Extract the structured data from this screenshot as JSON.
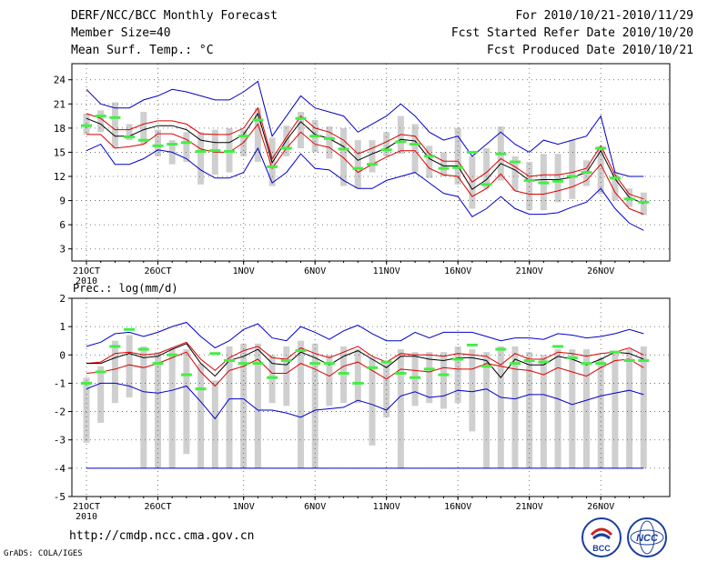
{
  "header": {
    "title": "DERF/NCC/BCC Monthly Forecast",
    "member_size": "Member Size=40",
    "variable": "Mean Surf. Temp.: °C",
    "forecast_period": "For 2010/10/21-2010/11/29",
    "started_date": "Fcst Started Refer Date 2010/10/20",
    "produced_date": "Fcst Produced Date 2010/10/21"
  },
  "footer": {
    "url": "http://cmdp.ncc.cma.gov.cn",
    "grads": "GrADS: COLA/IGES",
    "logo_left_text": "BCC",
    "logo_right_text": "NCC"
  },
  "colors": {
    "envelope": "#0000cc",
    "inner": "#dd0000",
    "mean": "#000000",
    "obs": "#44ee44",
    "box": "#cfcfcf",
    "grid": "#555555"
  },
  "chart_data": [
    {
      "type": "line",
      "title": "Mean Surf. Temp.: °C",
      "ylabel": "°C",
      "ylim": [
        1.5,
        26
      ],
      "yticks": [
        3,
        6,
        9,
        12,
        15,
        18,
        21,
        24
      ],
      "xticks": [
        {
          "day": 0,
          "label": "21OCT"
        },
        {
          "day": 5,
          "label": "26OCT"
        },
        {
          "day": 11,
          "label": "1NOV"
        },
        {
          "day": 16,
          "label": "6NOV"
        },
        {
          "day": 21,
          "label": "11NOV"
        },
        {
          "day": 26,
          "label": "16NOV"
        },
        {
          "day": 31,
          "label": "21NOV"
        },
        {
          "day": 36,
          "label": "26NOV"
        }
      ],
      "year_label": "2010",
      "series": [
        {
          "name": "ensemble max",
          "values": [
            22.8,
            21.0,
            20.5,
            20.5,
            21.5,
            22.0,
            22.8,
            22.5,
            22.0,
            21.5,
            21.5,
            22.5,
            23.8,
            17.0,
            19.5,
            22.0,
            20.5,
            20.0,
            19.5,
            17.5,
            18.5,
            19.5,
            21.0,
            19.5,
            17.5,
            16.5,
            17.0,
            14.5,
            16.0,
            17.5,
            16.0,
            15.0,
            16.5,
            16.0,
            16.5,
            17.0,
            19.5,
            12.5,
            12.0,
            12.0
          ]
        },
        {
          "name": "upper inner",
          "values": [
            19.8,
            19.2,
            17.8,
            17.8,
            18.5,
            18.9,
            18.9,
            18.5,
            17.3,
            17.2,
            17.2,
            18.0,
            20.5,
            14.2,
            16.9,
            19.5,
            18.0,
            17.5,
            16.5,
            14.8,
            15.5,
            16.3,
            17.2,
            17.0,
            14.8,
            13.9,
            13.9,
            11.3,
            12.5,
            14.2,
            13.2,
            12.0,
            12.2,
            12.2,
            12.5,
            13.0,
            15.8,
            12.2,
            9.8,
            9.2
          ]
        },
        {
          "name": "ensemble mean",
          "values": [
            19.2,
            18.5,
            17.0,
            17.0,
            17.8,
            18.3,
            18.3,
            17.8,
            16.5,
            16.2,
            16.2,
            17.2,
            19.8,
            13.7,
            16.5,
            18.8,
            17.2,
            16.7,
            15.7,
            14.0,
            14.8,
            15.5,
            16.6,
            16.4,
            14.2,
            13.3,
            13.3,
            10.4,
            11.6,
            13.6,
            12.8,
            11.5,
            11.6,
            11.6,
            11.9,
            12.5,
            15.2,
            11.7,
            9.4,
            8.6
          ]
        },
        {
          "name": "lower inner",
          "values": [
            17.2,
            17.2,
            15.5,
            15.7,
            16.0,
            17.3,
            17.3,
            16.6,
            15.4,
            15.0,
            15.0,
            16.2,
            18.5,
            13.0,
            15.5,
            17.5,
            16.0,
            15.6,
            14.3,
            12.5,
            13.5,
            14.4,
            15.2,
            15.2,
            13.0,
            12.2,
            12.0,
            9.5,
            10.5,
            12.3,
            10.2,
            9.8,
            9.8,
            10.2,
            10.7,
            11.5,
            13.5,
            10.0,
            8.0,
            7.3
          ]
        },
        {
          "name": "ensemble min",
          "values": [
            15.2,
            16.0,
            13.5,
            13.5,
            14.2,
            15.3,
            15.0,
            14.2,
            12.8,
            11.8,
            11.8,
            12.5,
            15.5,
            11.2,
            12.5,
            14.8,
            13.0,
            12.8,
            11.5,
            10.5,
            10.5,
            11.5,
            12.0,
            12.5,
            11.2,
            9.9,
            9.5,
            7.0,
            8.0,
            9.5,
            8.0,
            7.3,
            7.3,
            7.5,
            8.2,
            8.8,
            10.5,
            8.0,
            6.2,
            5.3
          ]
        },
        {
          "name": "box upper",
          "values": [
            19.8,
            20.2,
            21.2,
            18.5,
            20.0,
            17.8,
            16.5,
            17.5,
            17.5,
            17.8,
            18.0,
            17.8,
            20.5,
            16.8,
            18.3,
            20.0,
            19.0,
            18.2,
            18.0,
            16.5,
            16.5,
            17.5,
            19.5,
            18.5,
            15.8,
            15.0,
            18.0,
            14.5,
            15.5,
            18.2,
            14.5,
            13.8,
            14.8,
            14.8,
            16.5,
            14.0,
            15.8,
            12.5,
            10.5,
            10.0
          ]
        },
        {
          "name": "box lower",
          "values": [
            17.2,
            17.5,
            15.5,
            16.5,
            16.0,
            14.5,
            13.5,
            13.8,
            11.0,
            12.2,
            12.5,
            14.5,
            13.8,
            10.8,
            14.5,
            15.5,
            15.0,
            14.2,
            10.8,
            10.5,
            12.5,
            14.5,
            14.8,
            12.5,
            11.8,
            12.0,
            11.0,
            8.0,
            10.5,
            11.5,
            10.2,
            7.8,
            7.8,
            8.8,
            9.2,
            10.8,
            9.8,
            9.0,
            8.2,
            7.2
          ]
        },
        {
          "name": "observed",
          "values": [
            18.3,
            19.5,
            19.3,
            16.9,
            16.5,
            15.8,
            16.0,
            16.2,
            15.1,
            15.2,
            15.1,
            17.0,
            19.0,
            13.2,
            15.5,
            19.2,
            17.0,
            16.7,
            15.4,
            13.0,
            13.5,
            15.3,
            16.3,
            16.0,
            14.5,
            13.0,
            13.1,
            15.0,
            11.0,
            14.8,
            13.8,
            11.5,
            11.2,
            11.4,
            12.0,
            12.5,
            15.5,
            11.8,
            9.2,
            8.8
          ]
        }
      ]
    },
    {
      "type": "line",
      "title": "Prec.: log(mm/d)",
      "ylabel": "log(mm/d)",
      "ylim": [
        -5,
        2
      ],
      "yticks": [
        -5,
        -4,
        -3,
        -2,
        -1,
        0,
        1,
        2
      ],
      "xticks": [
        {
          "day": 0,
          "label": "21OCT"
        },
        {
          "day": 5,
          "label": "26OCT"
        },
        {
          "day": 11,
          "label": "1NOV"
        },
        {
          "day": 16,
          "label": "6NOV"
        },
        {
          "day": 21,
          "label": "11NOV"
        },
        {
          "day": 26,
          "label": "16NOV"
        },
        {
          "day": 31,
          "label": "21NOV"
        },
        {
          "day": 36,
          "label": "26NOV"
        }
      ],
      "year_label": "2010",
      "series": [
        {
          "name": "ensemble max",
          "values": [
            0.3,
            0.45,
            0.75,
            0.8,
            0.65,
            0.8,
            1.0,
            1.15,
            0.65,
            0.25,
            0.5,
            0.9,
            1.1,
            0.6,
            0.5,
            1.0,
            0.8,
            0.55,
            0.85,
            1.05,
            0.75,
            0.5,
            0.5,
            0.8,
            0.6,
            0.8,
            0.8,
            0.8,
            0.65,
            0.5,
            0.6,
            0.6,
            0.55,
            0.75,
            0.7,
            0.6,
            0.65,
            0.75,
            0.9,
            0.75
          ]
        },
        {
          "name": "upper inner",
          "values": [
            -0.3,
            -0.25,
            0.05,
            0.1,
            0.0,
            0.05,
            0.25,
            0.45,
            -0.15,
            -0.55,
            -0.1,
            0.15,
            0.3,
            -0.1,
            -0.15,
            0.25,
            0.05,
            -0.1,
            0.1,
            0.3,
            -0.05,
            -0.25,
            0.05,
            0.0,
            0.0,
            -0.05,
            0.05,
            0.0,
            -0.05,
            -0.35,
            0.05,
            -0.15,
            -0.15,
            0.1,
            0.05,
            -0.05,
            0.05,
            0.1,
            0.25,
            0.0
          ]
        },
        {
          "name": "ensemble mean",
          "values": [
            -0.3,
            -0.3,
            -0.1,
            0.05,
            -0.1,
            -0.05,
            0.2,
            0.4,
            -0.3,
            -0.75,
            -0.2,
            -0.05,
            0.2,
            -0.3,
            -0.35,
            0.1,
            -0.1,
            -0.35,
            -0.05,
            0.15,
            -0.15,
            -0.45,
            -0.05,
            -0.05,
            -0.15,
            -0.2,
            -0.1,
            -0.1,
            -0.2,
            -0.8,
            -0.15,
            -0.35,
            -0.35,
            -0.05,
            -0.15,
            -0.35,
            -0.15,
            0.1,
            0.05,
            -0.15
          ]
        },
        {
          "name": "lower inner",
          "values": [
            -0.65,
            -0.6,
            -0.5,
            -0.35,
            -0.45,
            -0.3,
            -0.1,
            0.1,
            -0.6,
            -1.1,
            -0.55,
            -0.4,
            -0.15,
            -0.65,
            -0.65,
            -0.3,
            -0.5,
            -0.75,
            -0.4,
            -0.25,
            -0.55,
            -0.85,
            -0.5,
            -0.55,
            -0.6,
            -0.45,
            -0.5,
            -0.5,
            -0.3,
            -0.4,
            -0.5,
            -0.55,
            -0.7,
            -0.45,
            -0.6,
            -0.75,
            -0.45,
            -0.2,
            -0.15,
            -0.45
          ]
        },
        {
          "name": "ensemble min",
          "values": [
            -1.2,
            -1.0,
            -1.0,
            -1.1,
            -1.3,
            -1.35,
            -1.25,
            -1.1,
            -1.65,
            -2.25,
            -1.55,
            -1.55,
            -1.95,
            -1.95,
            -2.05,
            -2.2,
            -1.95,
            -1.9,
            -1.85,
            -1.6,
            -1.75,
            -1.95,
            -1.45,
            -1.3,
            -1.5,
            -1.45,
            -1.25,
            -1.3,
            -1.2,
            -1.5,
            -1.55,
            -1.4,
            -1.4,
            -1.55,
            -1.75,
            -1.6,
            -1.45,
            -1.35,
            -1.25,
            -1.4
          ]
        },
        {
          "name": "floor",
          "values": [
            -4,
            -4,
            -4,
            -4,
            -4,
            -4,
            -4,
            -4,
            -4,
            -4,
            -4,
            -4,
            -4,
            -4,
            -4,
            -4,
            -4,
            -4,
            -4,
            -4,
            -4,
            -4,
            -4,
            -4,
            -4,
            -4,
            -4,
            -4,
            -4,
            -4,
            -4,
            -4,
            -4,
            -4,
            -4,
            -4,
            -4,
            -4,
            -4,
            -4
          ]
        },
        {
          "name": "box upper",
          "values": [
            -0.8,
            -0.4,
            0.5,
            0.7,
            0.3,
            0.1,
            0.2,
            0.2,
            -0.3,
            -0.9,
            0.3,
            0.4,
            0.4,
            0.0,
            0.3,
            0.5,
            0.4,
            0.0,
            0.3,
            0.2,
            -0.1,
            -0.2,
            0.2,
            0.1,
            0.1,
            0.1,
            0.3,
            0.2,
            0.1,
            0.3,
            0.3,
            0.1,
            0.0,
            0.2,
            0.2,
            0.2,
            -0.1,
            0.1,
            0.2,
            0.3
          ]
        },
        {
          "name": "box lower",
          "values": [
            -3.1,
            -2.4,
            -1.7,
            -1.5,
            -4.0,
            -4.0,
            -4.0,
            -3.5,
            -4.0,
            -4.0,
            -4.0,
            -4.0,
            -4.0,
            -1.7,
            -1.8,
            -4.0,
            -4.0,
            -1.8,
            -1.7,
            -1.7,
            -3.2,
            -2.2,
            -4.0,
            -1.8,
            -1.7,
            -1.9,
            -1.7,
            -2.7,
            -4.0,
            -4.0,
            -4.0,
            -4.0,
            -4.0,
            -4.0,
            -4.0,
            -4.0,
            -4.0,
            -4.0,
            -4.0,
            -4.0
          ]
        },
        {
          "name": "observed",
          "values": [
            -1.0,
            -0.6,
            0.3,
            0.9,
            0.2,
            -0.3,
            0.0,
            -0.7,
            -1.2,
            0.05,
            -0.2,
            -0.3,
            -0.3,
            -0.8,
            -0.2,
            0.15,
            -0.3,
            -0.3,
            -0.65,
            -1.0,
            -0.45,
            -0.25,
            -0.65,
            -0.8,
            -0.5,
            -0.7,
            -0.15,
            0.35,
            -0.4,
            0.2,
            -0.3,
            -0.2,
            -0.25,
            0.3,
            -0.1,
            -0.3,
            -0.3,
            0.1,
            -0.2,
            -0.2
          ]
        }
      ]
    }
  ]
}
